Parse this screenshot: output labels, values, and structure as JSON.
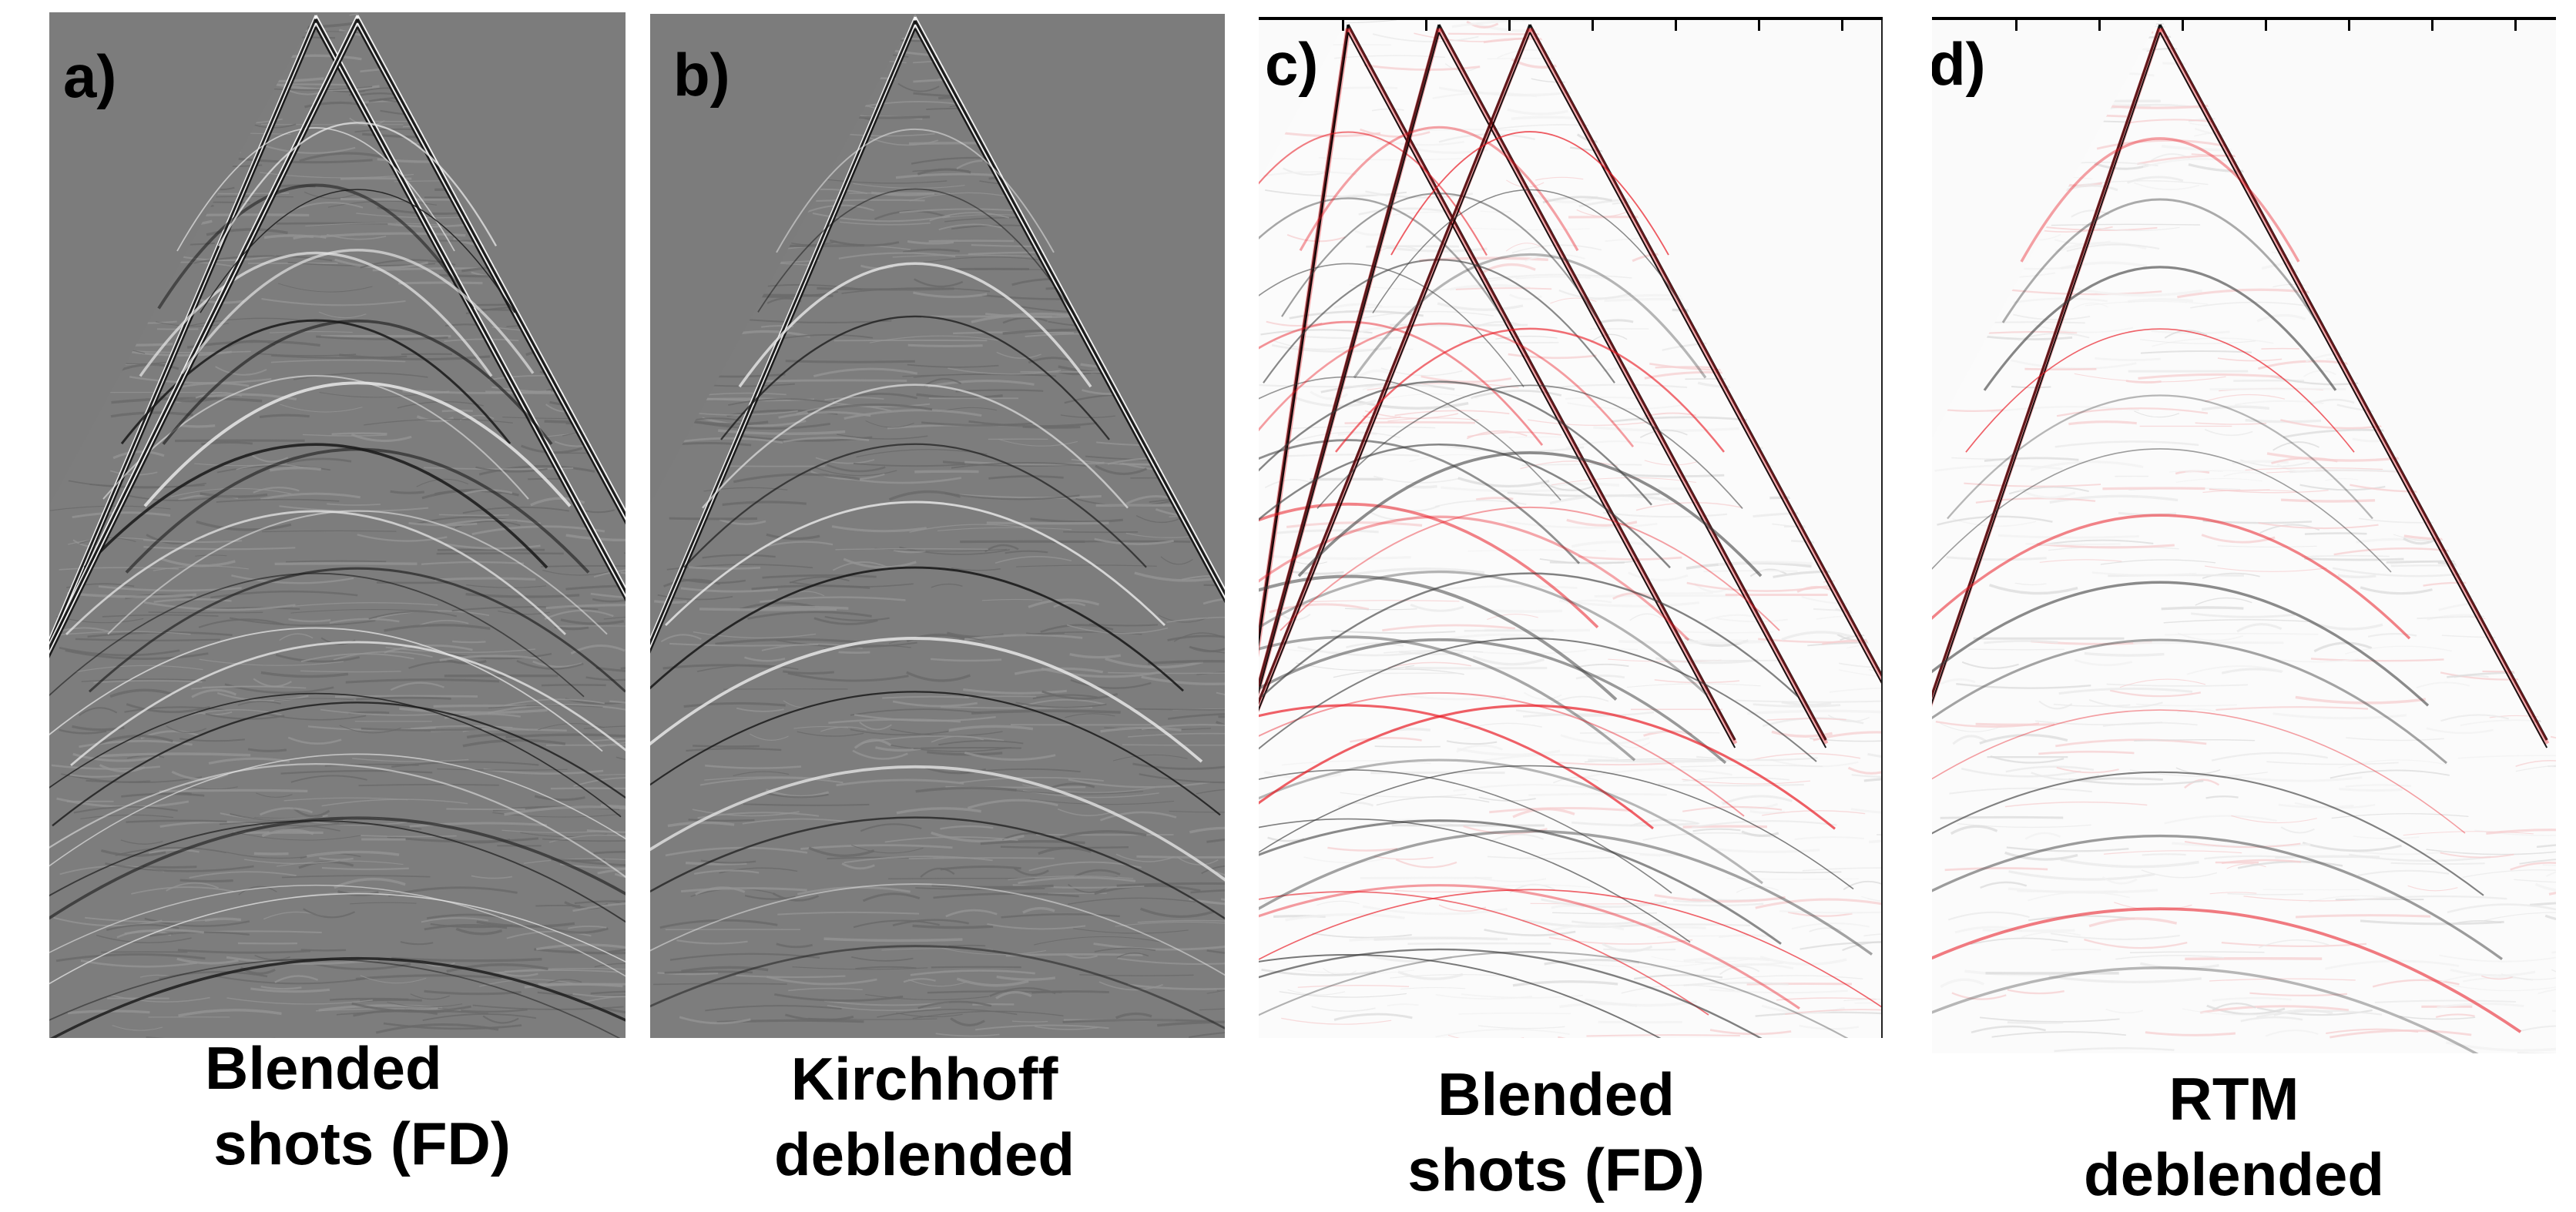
{
  "panels": [
    {
      "id": "a",
      "label": "a)",
      "caption_line1": "Blended",
      "caption_line2": "shots (FD)",
      "colormap": "gray",
      "apex_count": 2
    },
    {
      "id": "b",
      "label": "b)",
      "caption_line1": "Kirchhoff",
      "caption_line2": "deblended",
      "colormap": "gray",
      "apex_count": 1
    },
    {
      "id": "c",
      "label": "c)",
      "caption_line1": "Blended",
      "caption_line2": "shots (FD)",
      "colormap": "red-white-black",
      "apex_count": 3
    },
    {
      "id": "d",
      "label": "d)",
      "caption_line1": "RTM",
      "caption_line2": "deblended",
      "colormap": "red-white-black",
      "apex_count": 1
    }
  ],
  "colors": {
    "gray_background": "#7d7d7d",
    "white_background": "#fbfbfb",
    "accent_red": "#e8141e",
    "ink": "#000000"
  }
}
